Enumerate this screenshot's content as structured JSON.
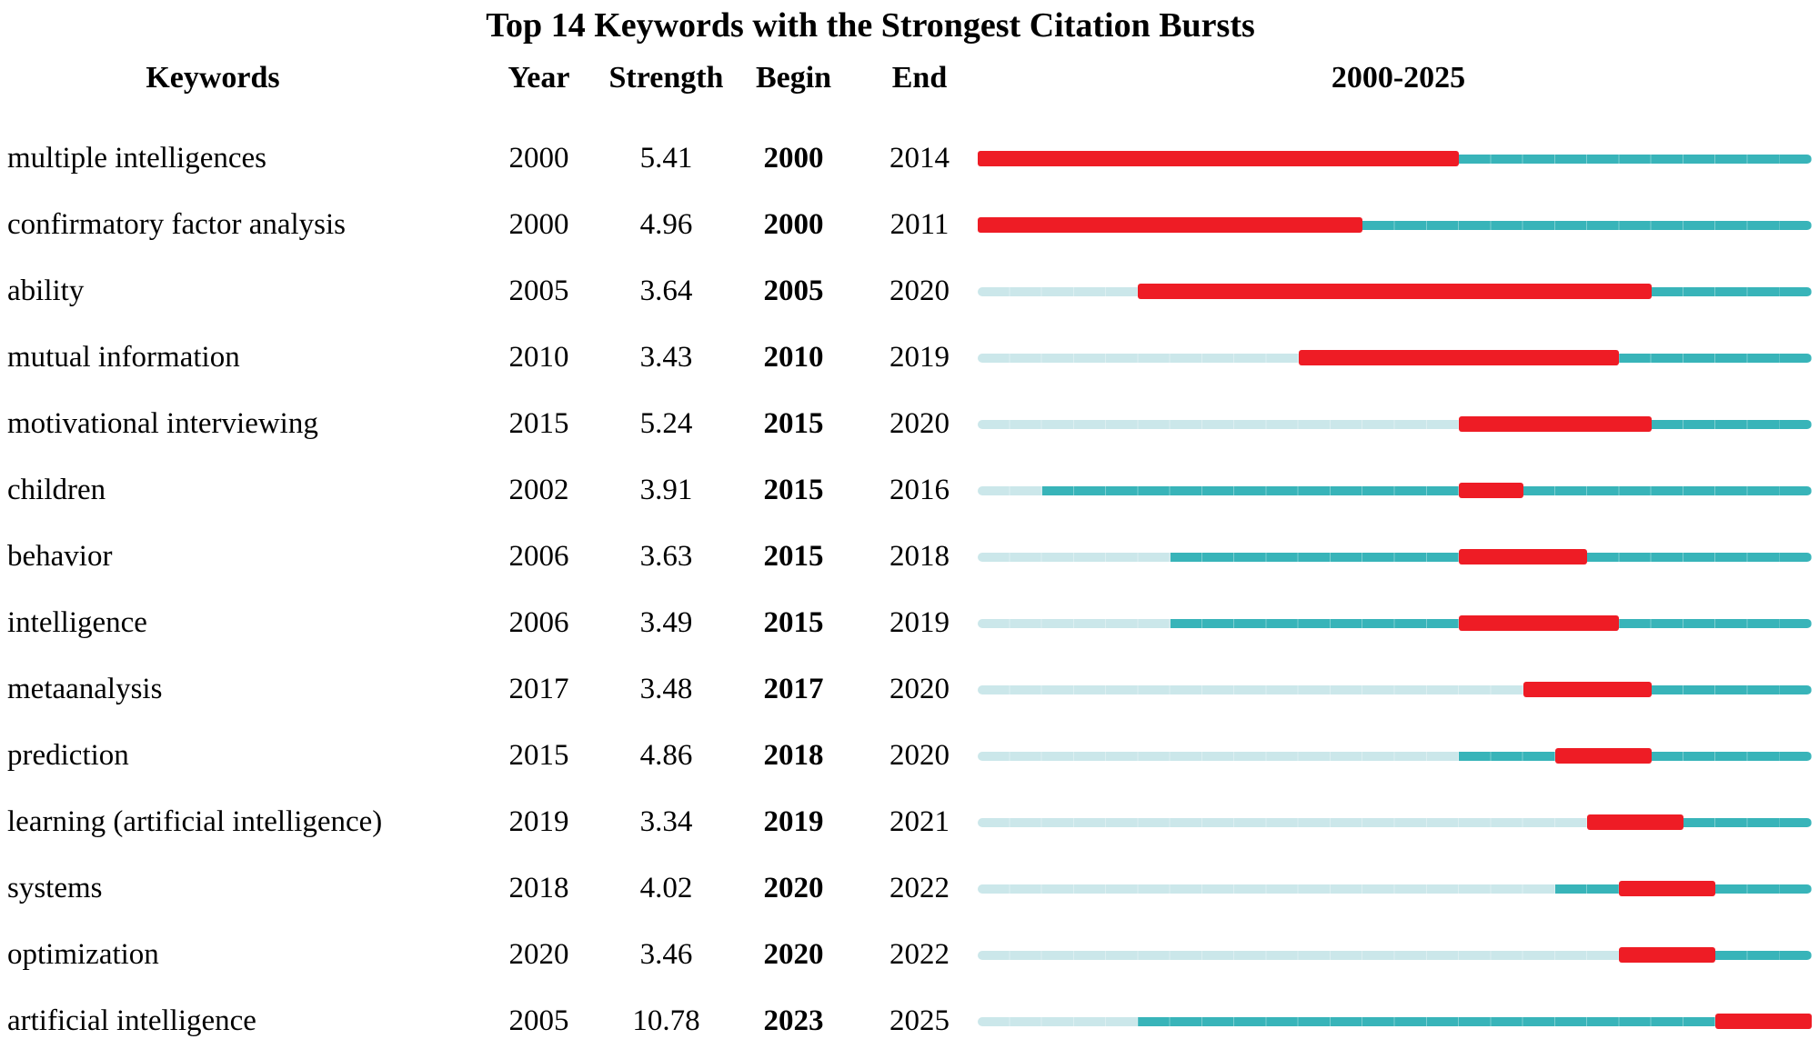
{
  "chart_data": {
    "type": "table",
    "title": "Top 14 Keywords with the Strongest Citation Bursts",
    "columns": [
      "Keywords",
      "Year",
      "Strength",
      "Begin",
      "End",
      "2000-2025"
    ],
    "timeline": {
      "start": 2000,
      "end": 2025
    },
    "legend_note": "red = burst period, dark teal = years keyword active, pale = years before keyword appeared",
    "colors": {
      "burst": "#ee1c25",
      "active": "#38b4b9",
      "inactive": "#cbe7ea"
    },
    "rows": [
      {
        "keyword": "multiple intelligences",
        "year": "2000",
        "strength": "5.41",
        "begin": "2000",
        "end": "2014"
      },
      {
        "keyword": "confirmatory factor analysis",
        "year": "2000",
        "strength": "4.96",
        "begin": "2000",
        "end": "2011"
      },
      {
        "keyword": "ability",
        "year": "2005",
        "strength": "3.64",
        "begin": "2005",
        "end": "2020"
      },
      {
        "keyword": "mutual information",
        "year": "2010",
        "strength": "3.43",
        "begin": "2010",
        "end": "2019"
      },
      {
        "keyword": "motivational interviewing",
        "year": "2015",
        "strength": "5.24",
        "begin": "2015",
        "end": "2020"
      },
      {
        "keyword": "children",
        "year": "2002",
        "strength": "3.91",
        "begin": "2015",
        "end": "2016"
      },
      {
        "keyword": "behavior",
        "year": "2006",
        "strength": "3.63",
        "begin": "2015",
        "end": "2018"
      },
      {
        "keyword": "intelligence",
        "year": "2006",
        "strength": "3.49",
        "begin": "2015",
        "end": "2019"
      },
      {
        "keyword": "metaanalysis",
        "year": "2017",
        "strength": "3.48",
        "begin": "2017",
        "end": "2020"
      },
      {
        "keyword": "prediction",
        "year": "2015",
        "strength": "4.86",
        "begin": "2018",
        "end": "2020"
      },
      {
        "keyword": "learning (artificial intelligence)",
        "year": "2019",
        "strength": "3.34",
        "begin": "2019",
        "end": "2021"
      },
      {
        "keyword": "systems",
        "year": "2018",
        "strength": "4.02",
        "begin": "2020",
        "end": "2022"
      },
      {
        "keyword": "optimization",
        "year": "2020",
        "strength": "3.46",
        "begin": "2020",
        "end": "2022"
      },
      {
        "keyword": "artificial intelligence",
        "year": "2005",
        "strength": "10.78",
        "begin": "2023",
        "end": "2025"
      }
    ]
  }
}
